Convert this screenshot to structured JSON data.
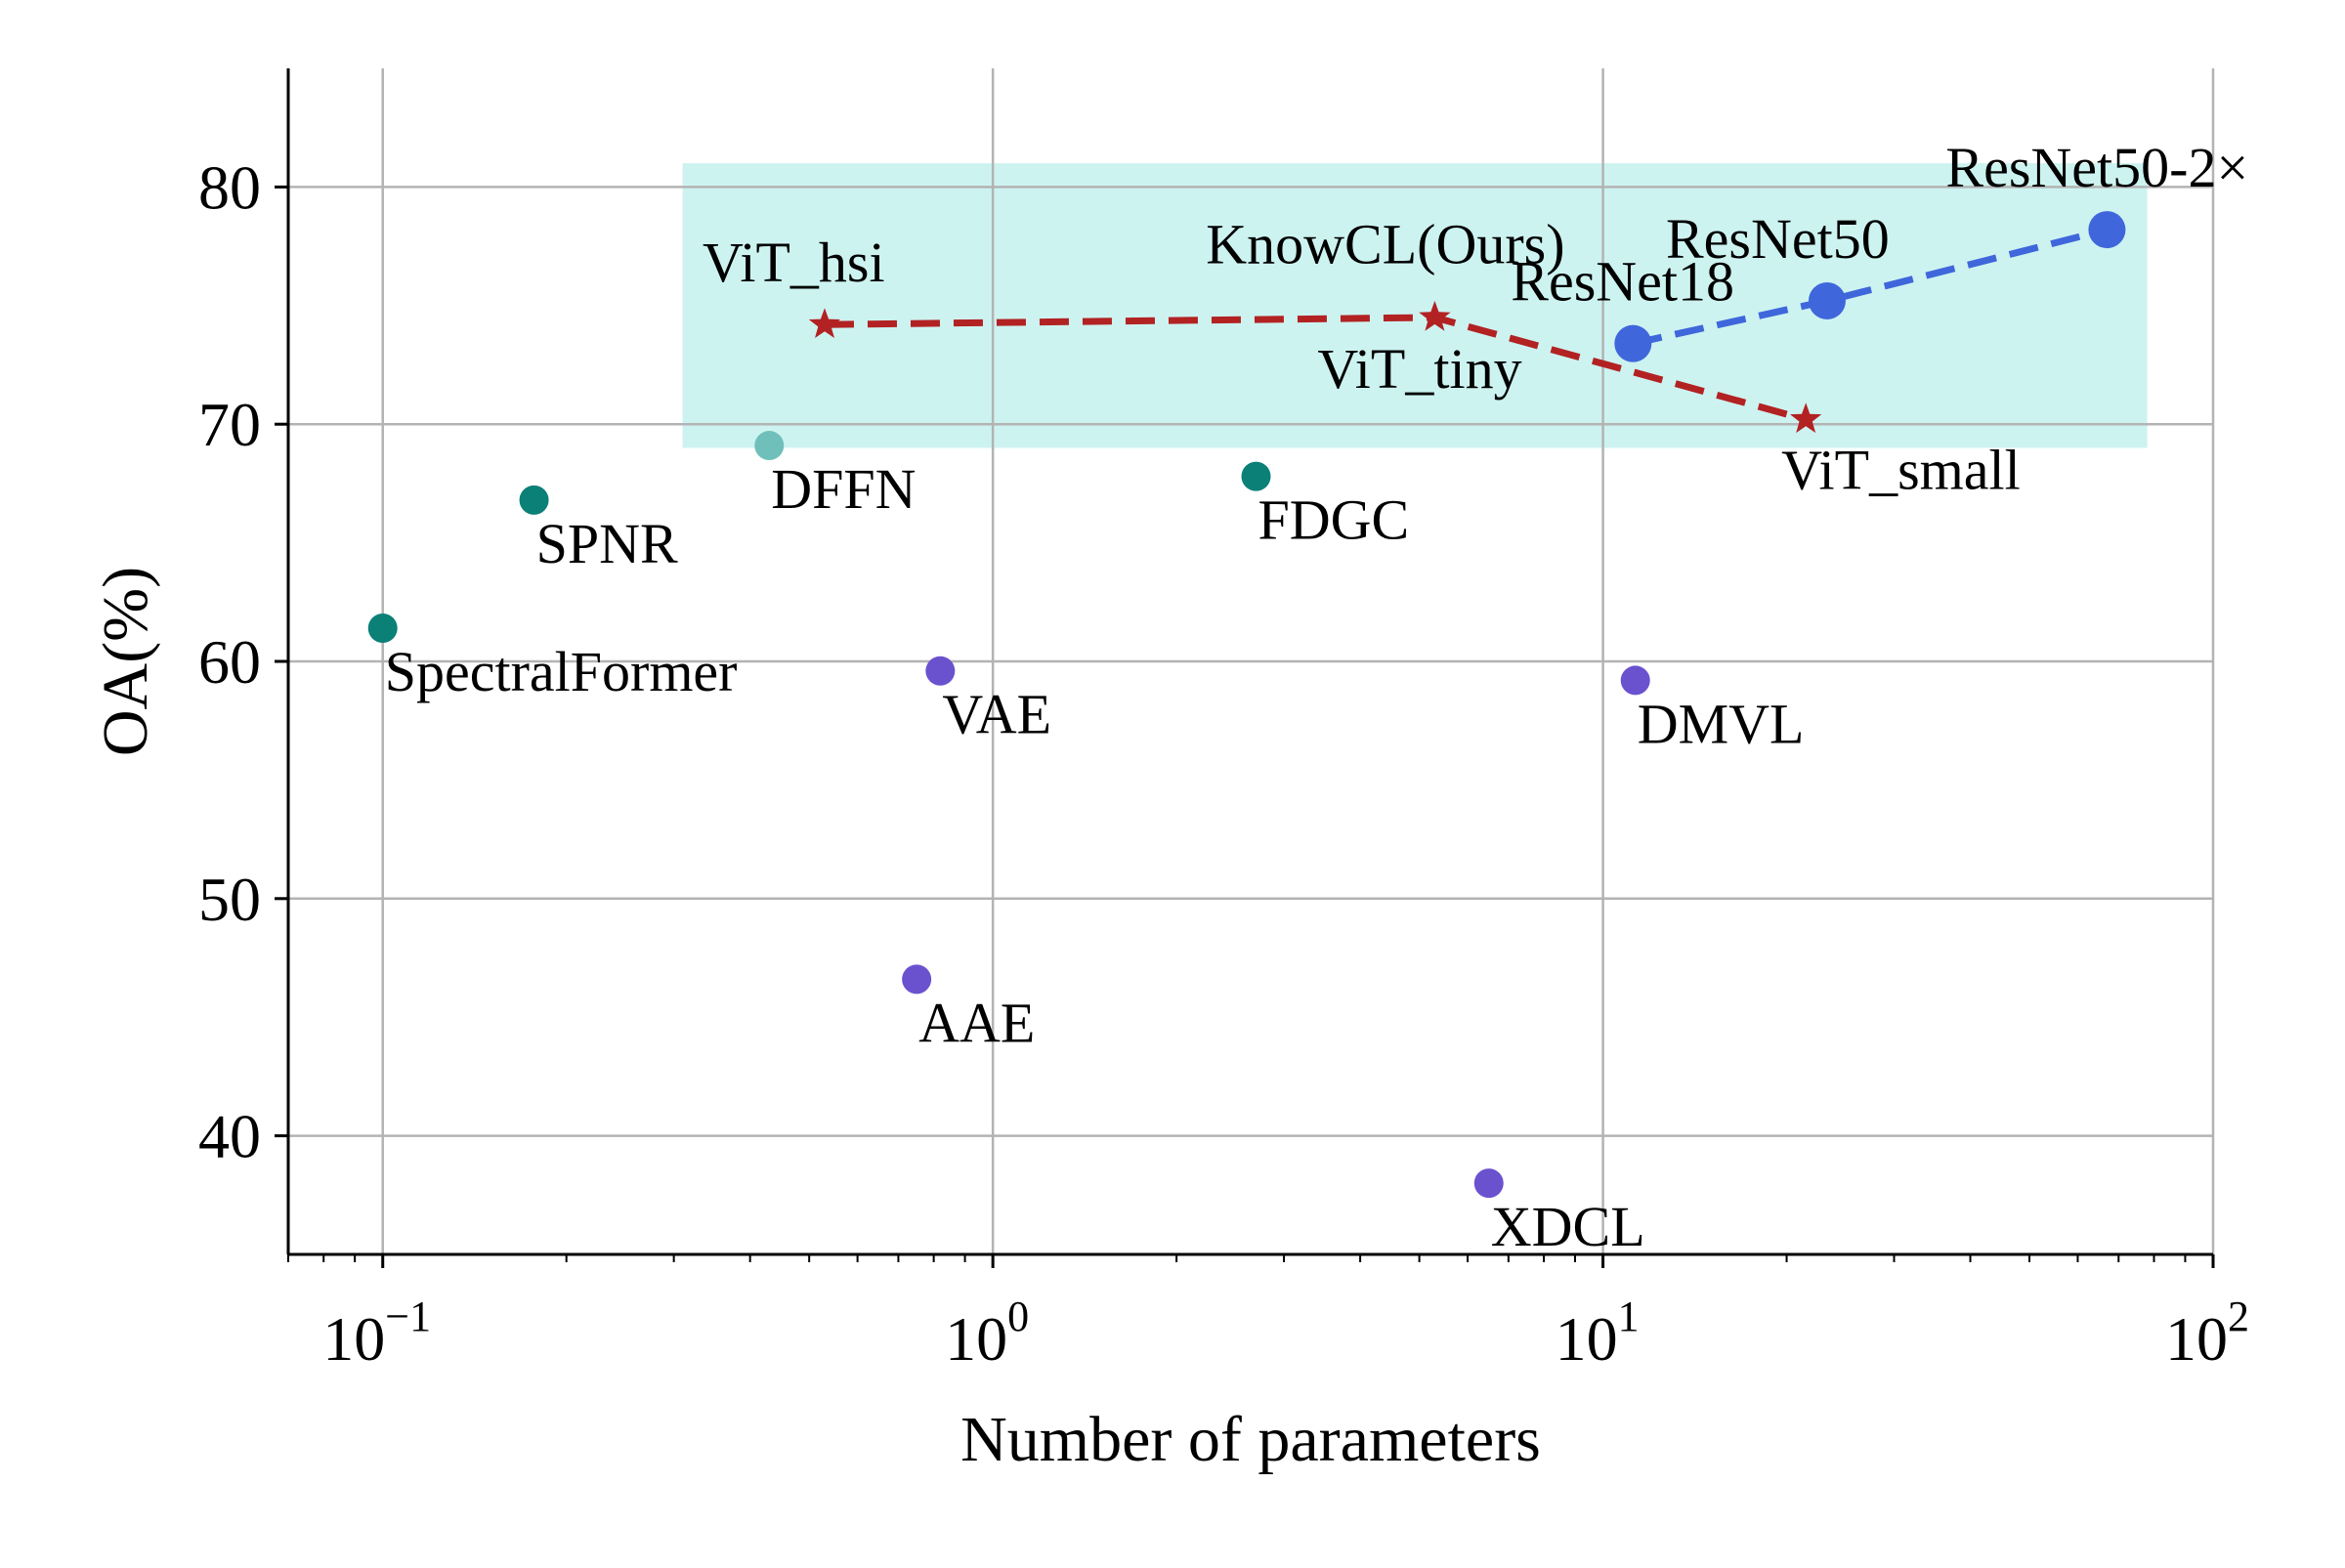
{
  "chart_data": {
    "type": "scatter",
    "title": "",
    "xlabel": "Number of parameters",
    "ylabel": "OA(%)",
    "xscale": "log",
    "xlim": [
      0.07,
      100
    ],
    "ylim": [
      35,
      85
    ],
    "grid": true,
    "x_ticks": [
      {
        "value": 0.1,
        "base": "10",
        "exp": "−1"
      },
      {
        "value": 1,
        "base": "10",
        "exp": "0"
      },
      {
        "value": 10,
        "base": "10",
        "exp": "1"
      },
      {
        "value": 100,
        "base": "10",
        "exp": "2"
      }
    ],
    "y_ticks": [
      {
        "value": 40,
        "label": "40"
      },
      {
        "value": 50,
        "label": "50"
      },
      {
        "value": 60,
        "label": "60"
      },
      {
        "value": 70,
        "label": "70"
      },
      {
        "value": 80,
        "label": "80"
      }
    ],
    "highlight_region": {
      "x": [
        0.31,
        78
      ],
      "y": [
        69,
        81
      ],
      "color": "#cdf3f1"
    },
    "colors": {
      "teal": "#0a8077",
      "light_teal": "#6fc0ba",
      "purple": "#6a52cf",
      "red": "#b22222",
      "blue": "#3f67db",
      "grid": "#b3b3b3",
      "axis": "#000000"
    },
    "points": [
      {
        "label": "SpectralFormer",
        "x": 0.1,
        "y": 61.4,
        "color": "#0a8077",
        "label_pos": "below-right"
      },
      {
        "label": "SPNR",
        "x": 0.177,
        "y": 66.8,
        "color": "#0a8077",
        "label_pos": "below-right"
      },
      {
        "label": "DFFN",
        "x": 0.43,
        "y": 69.1,
        "color": "#6fc0ba",
        "label_pos": "below-right"
      },
      {
        "label": "FDGC",
        "x": 2.7,
        "y": 67.8,
        "color": "#0a8077",
        "label_pos": "below-right"
      },
      {
        "label": "VAE",
        "x": 0.82,
        "y": 59.6,
        "color": "#6a52cf",
        "label_pos": "below-right"
      },
      {
        "label": "AAE",
        "x": 0.75,
        "y": 46.6,
        "color": "#6a52cf",
        "label_pos": "below-right"
      },
      {
        "label": "XDCL",
        "x": 6.5,
        "y": 38.0,
        "color": "#6a52cf",
        "label_pos": "below-right"
      },
      {
        "label": "DMVL",
        "x": 11.3,
        "y": 59.2,
        "color": "#6a52cf",
        "label_pos": "below-right"
      }
    ],
    "series": [
      {
        "name": "",
        "color": "#b22222",
        "marker": "star",
        "points": [
          {
            "label": "ViT_hsi",
            "x": 0.53,
            "y": 74.2,
            "label_pos": "above-left"
          },
          {
            "label": "ViT_tiny",
            "x": 5.3,
            "y": 74.5,
            "label_pos": "below-left"
          },
          {
            "label": "ViT_small",
            "x": 21.5,
            "y": 70.2,
            "label_pos": "below"
          }
        ]
      },
      {
        "name": "",
        "color": "#3f67db",
        "marker": "circle",
        "points": [
          {
            "label": "ResNet18",
            "x": 11.2,
            "y": 73.4,
            "label_pos": "above-left"
          },
          {
            "label": "ResNet50",
            "x": 23.3,
            "y": 75.2,
            "label_pos": "above"
          },
          {
            "label": "ResNet50-2×",
            "x": 67,
            "y": 78.2,
            "label_pos": "above"
          }
        ]
      }
    ],
    "annotations": [
      {
        "text": "KnowCL(Ours)",
        "x": 4.4,
        "y": 77.6
      }
    ]
  }
}
